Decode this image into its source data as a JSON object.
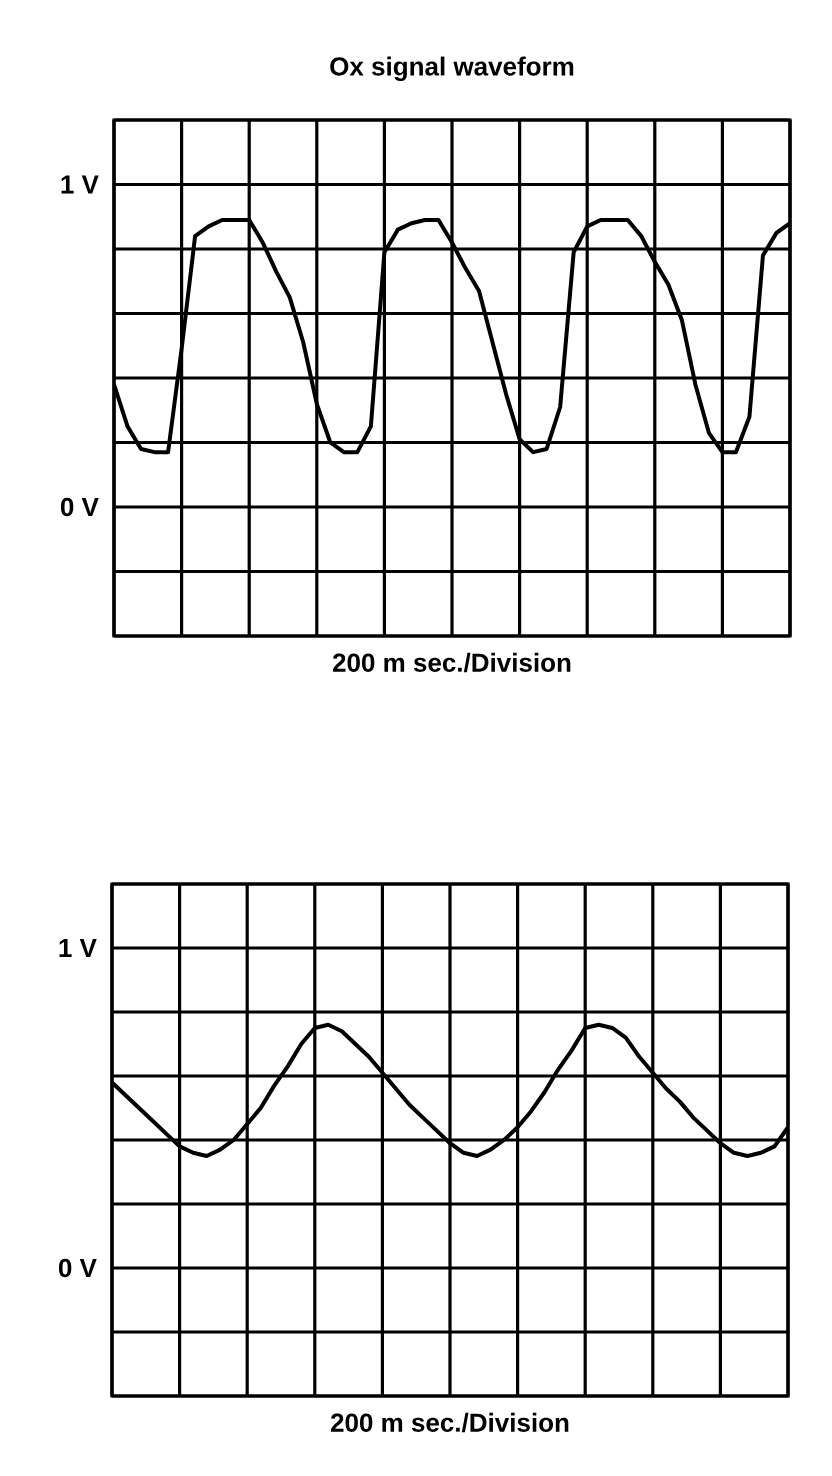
{
  "chart_data": [
    {
      "type": "line",
      "title": "Ox signal waveform",
      "xlabel": "200 m sec./Division",
      "categories": [
        null,
        null,
        null,
        null,
        null,
        null,
        null,
        null,
        null,
        null,
        null,
        null,
        null,
        null,
        null,
        null,
        null,
        null,
        null,
        null,
        null,
        null,
        null,
        null,
        null,
        null,
        null,
        null,
        null,
        null,
        null,
        null,
        null,
        null,
        null,
        null,
        null,
        null,
        null,
        null,
        null,
        null,
        null,
        null,
        null,
        null,
        null,
        null,
        null,
        null,
        null
      ],
      "values": [
        0.38,
        0.25,
        0.18,
        0.17,
        0.17,
        0.49,
        0.84,
        0.87,
        0.89,
        0.89,
        0.89,
        0.82,
        0.73,
        0.65,
        0.51,
        0.32,
        0.2,
        0.17,
        0.17,
        0.25,
        0.79,
        0.86,
        0.88,
        0.89,
        0.89,
        0.82,
        0.74,
        0.67,
        0.51,
        0.35,
        0.21,
        0.17,
        0.18,
        0.31,
        0.79,
        0.87,
        0.89,
        0.89,
        0.89,
        0.84,
        0.76,
        0.69,
        0.58,
        0.38,
        0.23,
        0.17,
        0.17,
        0.28,
        0.78,
        0.85,
        0.88
      ],
      "color": "#000000",
      "ylim": [
        -0.4,
        1.2
      ],
      "yticks": [
        {
          "value": -0.4,
          "label": null
        },
        {
          "value": -0.2,
          "label": null
        },
        {
          "value": 0,
          "label": "0 V"
        },
        {
          "value": 0.2,
          "label": null
        },
        {
          "value": 0.4,
          "label": null
        },
        {
          "value": 0.6,
          "label": null
        },
        {
          "value": 0.8,
          "label": null
        },
        {
          "value": 1,
          "label": "1 V"
        },
        {
          "value": 1.2,
          "label": null
        }
      ],
      "grid": true,
      "line_style": "solid"
    },
    {
      "type": "line",
      "xlabel": "200 m sec./Division",
      "categories": [
        null,
        null,
        null,
        null,
        null,
        null,
        null,
        null,
        null,
        null,
        null,
        null,
        null,
        null,
        null,
        null,
        null,
        null,
        null,
        null,
        null,
        null,
        null,
        null,
        null,
        null,
        null,
        null,
        null,
        null,
        null,
        null,
        null,
        null,
        null,
        null,
        null,
        null,
        null,
        null,
        null,
        null,
        null,
        null,
        null,
        null,
        null,
        null,
        null,
        null,
        null
      ],
      "values": [
        0.58,
        0.54,
        0.5,
        0.46,
        0.42,
        0.38,
        0.36,
        0.35,
        0.37,
        0.4,
        0.45,
        0.5,
        0.57,
        0.63,
        0.7,
        0.75,
        0.76,
        0.74,
        0.7,
        0.66,
        0.61,
        0.56,
        0.51,
        0.47,
        0.43,
        0.39,
        0.36,
        0.35,
        0.37,
        0.4,
        0.44,
        0.49,
        0.55,
        0.62,
        0.68,
        0.75,
        0.76,
        0.75,
        0.72,
        0.66,
        0.61,
        0.56,
        0.52,
        0.47,
        0.43,
        0.39,
        0.36,
        0.35,
        0.36,
        0.38,
        0.44
      ],
      "color": "#000000",
      "ylim": [
        -0.4,
        1.2
      ],
      "yticks": [
        {
          "value": -0.4,
          "label": null
        },
        {
          "value": -0.2,
          "label": null
        },
        {
          "value": 0,
          "label": "0 V"
        },
        {
          "value": 0.2,
          "label": null
        },
        {
          "value": 0.4,
          "label": null
        },
        {
          "value": 0.6,
          "label": null
        },
        {
          "value": 0.8,
          "label": null
        },
        {
          "value": 1,
          "label": "1 V"
        },
        {
          "value": 1.2,
          "label": null
        }
      ],
      "grid": true,
      "line_style": "solid"
    }
  ]
}
